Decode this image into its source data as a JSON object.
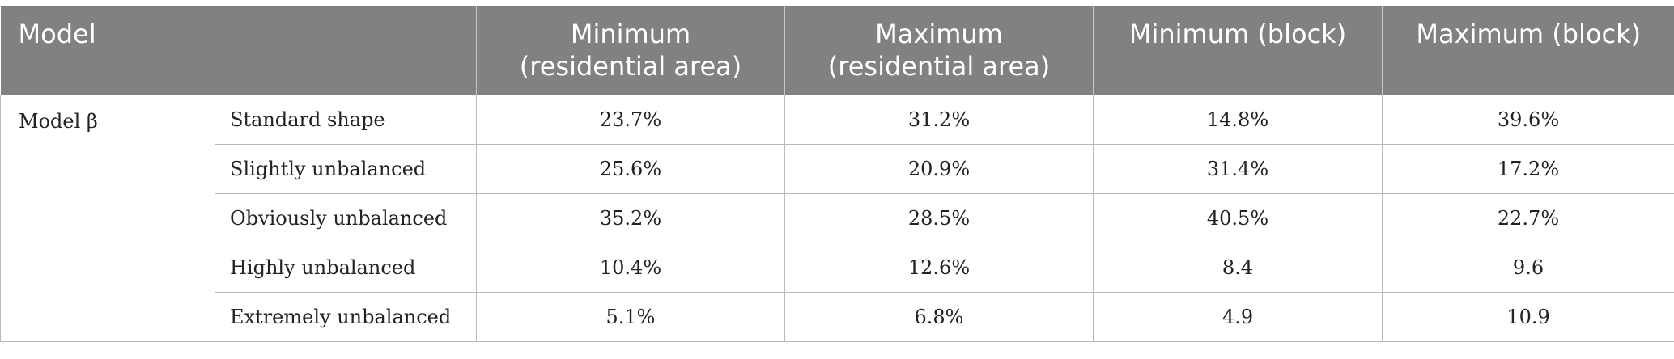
{
  "table": {
    "headers": {
      "model": "Model",
      "min_res_line1": "Minimum",
      "min_res_line2": "(residential area)",
      "max_res_line1": "Maximum",
      "max_res_line2": "(residential area)",
      "min_block": "Minimum (block)",
      "max_block": "Maximum (block)"
    },
    "model_name": "Model β",
    "rows": [
      {
        "shape": "Standard shape",
        "min_res": "23.7%",
        "max_res": "31.2%",
        "min_block": "14.8%",
        "max_block": "39.6%"
      },
      {
        "shape": "Slightly unbalanced",
        "min_res": "25.6%",
        "max_res": "20.9%",
        "min_block": "31.4%",
        "max_block": "17.2%"
      },
      {
        "shape": "Obviously unbalanced",
        "min_res": "35.2%",
        "max_res": "28.5%",
        "min_block": "40.5%",
        "max_block": "22.7%"
      },
      {
        "shape": "Highly unbalanced",
        "min_res": "10.4%",
        "max_res": "12.6%",
        "min_block": "8.4",
        "max_block": "9.6"
      },
      {
        "shape": "Extremely unbalanced",
        "min_res": "5.1%",
        "max_res": "6.8%",
        "min_block": "4.9",
        "max_block": "10.9"
      }
    ]
  }
}
